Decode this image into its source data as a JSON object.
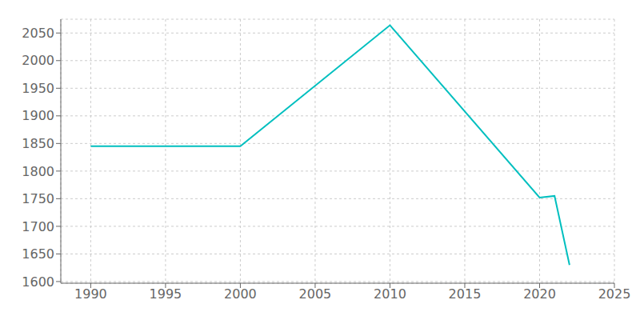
{
  "chart_data": {
    "type": "line",
    "x": [
      1990,
      2000,
      2010,
      2020,
      2021,
      2022
    ],
    "values": [
      1845,
      1845,
      2064,
      1752,
      1755,
      1630
    ],
    "color": "#00BFBF",
    "xlim": [
      1988,
      2025
    ],
    "ylim": [
      1597,
      2075
    ],
    "xticks": [
      1990,
      1995,
      2000,
      2005,
      2010,
      2015,
      2020,
      2025
    ],
    "yticks": [
      1600,
      1650,
      1700,
      1750,
      1800,
      1850,
      1900,
      1950,
      2000,
      2050
    ],
    "grid": true
  }
}
